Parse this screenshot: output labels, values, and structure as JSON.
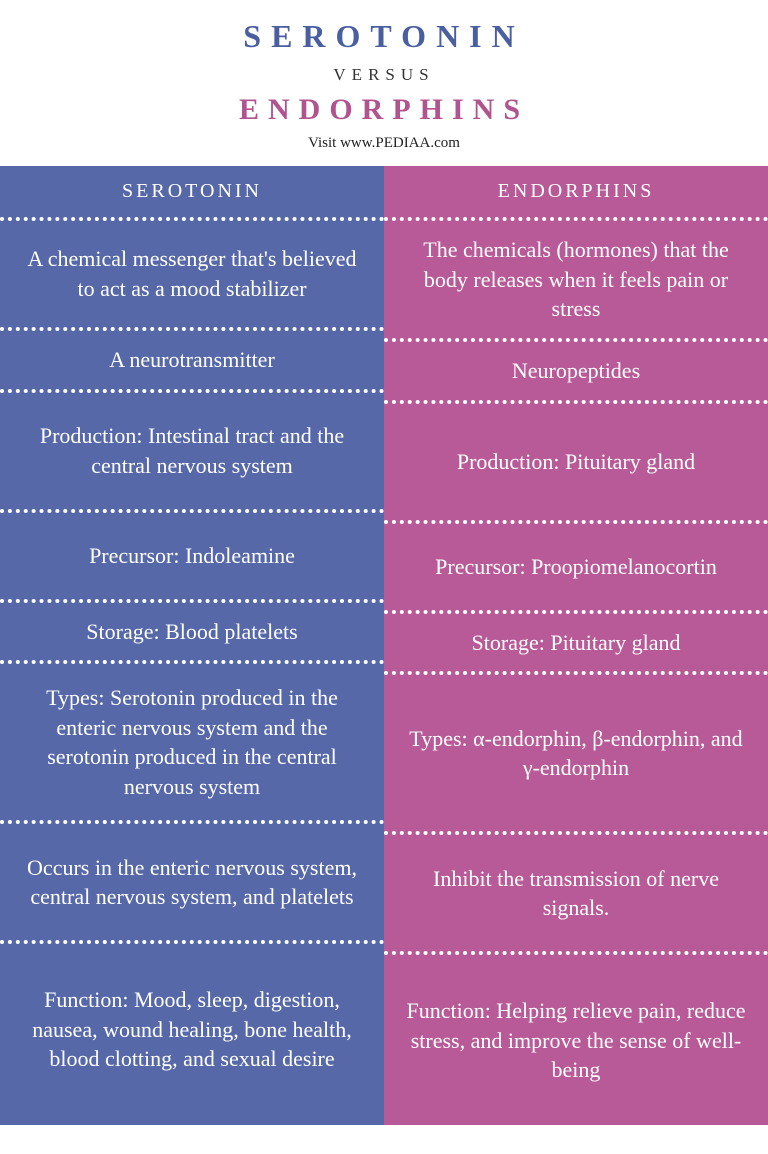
{
  "header": {
    "title1": "SEROTONIN",
    "versus": "VERSUS",
    "title2": "ENDORPHINS",
    "visit": "Visit www.PEDIAA.com",
    "title1_color": "#4a5fa0",
    "title2_color": "#b0538e"
  },
  "columns": {
    "left": {
      "header": "SEROTONIN",
      "bg_color": "#5668a8",
      "rows": [
        "A chemical messenger that's believed to act as a mood stabilizer",
        "A neurotransmitter",
        "Production: Intestinal tract and the central nervous system",
        "Precursor: Indoleamine",
        "Storage: Blood platelets",
        "Types: Serotonin produced in the enteric nervous system and the serotonin produced in the central nervous system",
        "Occurs in the enteric nervous system, central nervous system, and platelets",
        "Function: Mood, sleep, digestion, nausea, wound healing, bone health, blood clotting, and sexual desire"
      ]
    },
    "right": {
      "header": "ENDORPHINS",
      "bg_color": "#b75a97",
      "rows": [
        "The chemicals (hormones) that the body releases when it feels pain or stress",
        "Neuropeptides",
        "Production: Pituitary gland",
        "Precursor: Proopiomelanocortin",
        "Storage: Pituitary gland",
        "Types: α-endorphin, β-endorphin, and γ-endorphin",
        "Inhibit the transmission of nerve signals.",
        "Function: Helping relieve pain, reduce stress, and improve the sense of well-being"
      ]
    }
  },
  "style": {
    "divider_color": "#ffffff",
    "text_color": "#ffffff",
    "body_font": "Georgia",
    "cell_fontsize": 22,
    "header_fontsize": 20
  }
}
